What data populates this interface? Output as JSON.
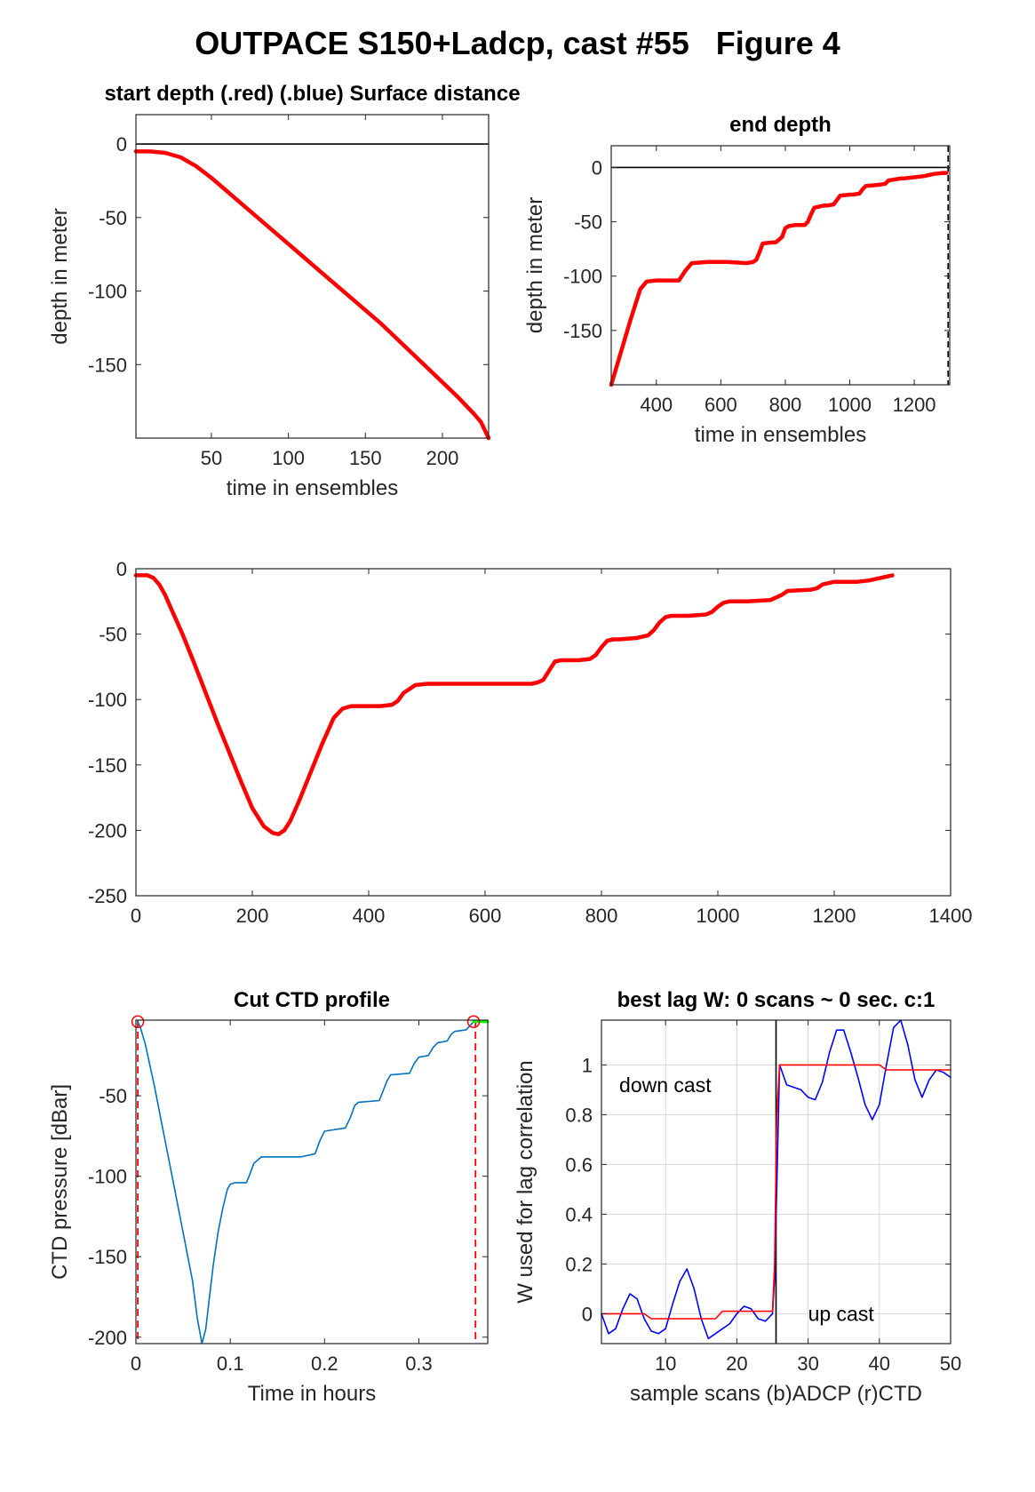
{
  "figure_title": "OUTPACE S150+Ladcp, cast #55   Figure 4",
  "chart_data": [
    {
      "id": "start-depth",
      "type": "line",
      "title": "start depth (.red) (.blue) Surface distance",
      "xlabel": "time in ensembles",
      "ylabel": "depth in meter",
      "xlim": [
        1,
        230
      ],
      "ylim": [
        -200,
        20
      ],
      "xticks": [
        50,
        100,
        150,
        200
      ],
      "yticks": [
        0,
        -50,
        -100,
        -150
      ],
      "grid": false,
      "reference_line": {
        "y": 0,
        "color": "#000000"
      },
      "series": [
        {
          "color": "#ff0000",
          "x": [
            1,
            10,
            20,
            30,
            40,
            50,
            60,
            70,
            80,
            90,
            100,
            110,
            120,
            130,
            140,
            150,
            160,
            170,
            180,
            190,
            200,
            210,
            220,
            225,
            230
          ],
          "y": [
            -5,
            -5,
            -6,
            -9,
            -15,
            -23,
            -32,
            -41,
            -50,
            -59,
            -68,
            -77,
            -86,
            -95,
            -104,
            -113,
            -122,
            -132,
            -142,
            -152,
            -162,
            -172,
            -183,
            -189,
            -200
          ]
        }
      ]
    },
    {
      "id": "end-depth",
      "type": "line",
      "title": "end depth",
      "xlabel": "time in ensembles",
      "ylabel": "depth in meter",
      "xlim": [
        260,
        1310
      ],
      "ylim": [
        -200,
        20
      ],
      "xticks": [
        400,
        600,
        800,
        1000,
        1200
      ],
      "yticks": [
        0,
        -50,
        -100,
        -150
      ],
      "grid": false,
      "reference_line": {
        "y": 0,
        "color": "#000000"
      },
      "vertical_marker": {
        "x": 1305,
        "style": "dashed",
        "color": "#000000"
      },
      "series": [
        {
          "color": "#ff0000",
          "x": [
            260,
            280,
            320,
            350,
            370,
            400,
            430,
            445,
            470,
            490,
            510,
            560,
            620,
            680,
            700,
            710,
            720,
            730,
            760,
            770,
            790,
            800,
            810,
            830,
            860,
            870,
            880,
            890,
            920,
            930,
            950,
            960,
            970,
            1000,
            1010,
            1030,
            1040,
            1050,
            1090,
            1110,
            1120,
            1160,
            1170,
            1200,
            1230,
            1260,
            1290,
            1300
          ],
          "y": [
            -200,
            -180,
            -140,
            -112,
            -105,
            -104,
            -104,
            -104,
            -104,
            -95,
            -88,
            -87,
            -87,
            -88,
            -87,
            -85,
            -78,
            -70,
            -69,
            -69,
            -64,
            -56,
            -54,
            -53,
            -53,
            -50,
            -43,
            -37,
            -35,
            -35,
            -34,
            -30,
            -26,
            -25,
            -25,
            -24,
            -20,
            -17,
            -16,
            -15,
            -12,
            -10,
            -10,
            -9,
            -8,
            -6,
            -5,
            -5
          ]
        }
      ]
    },
    {
      "id": "full-depth",
      "type": "line",
      "title": "",
      "xlabel": "",
      "ylabel": "",
      "xlim": [
        0,
        1400
      ],
      "ylim": [
        -250,
        0
      ],
      "xticks": [
        0,
        200,
        400,
        600,
        800,
        1000,
        1200,
        1400
      ],
      "yticks": [
        0,
        -50,
        -100,
        -150,
        -200,
        -250
      ],
      "grid": false,
      "series": [
        {
          "color": "#ff0000",
          "x": [
            0,
            20,
            30,
            40,
            50,
            60,
            80,
            100,
            120,
            140,
            160,
            180,
            200,
            220,
            235,
            245,
            255,
            265,
            280,
            300,
            320,
            340,
            355,
            370,
            390,
            420,
            440,
            450,
            460,
            480,
            500,
            560,
            620,
            680,
            690,
            700,
            710,
            720,
            730,
            760,
            780,
            790,
            800,
            810,
            820,
            830,
            860,
            880,
            890,
            900,
            910,
            920,
            930,
            950,
            980,
            990,
            1000,
            1010,
            1020,
            1030,
            1050,
            1090,
            1110,
            1120,
            1160,
            1170,
            1180,
            1200,
            1240,
            1260,
            1280,
            1300
          ],
          "y": [
            -5,
            -5,
            -7,
            -12,
            -20,
            -30,
            -50,
            -72,
            -95,
            -118,
            -140,
            -162,
            -183,
            -197,
            -202,
            -203,
            -200,
            -193,
            -178,
            -156,
            -134,
            -114,
            -107,
            -105,
            -105,
            -105,
            -104,
            -101,
            -95,
            -89,
            -88,
            -88,
            -88,
            -88,
            -87,
            -85,
            -78,
            -71,
            -70,
            -70,
            -69,
            -66,
            -60,
            -55,
            -54,
            -54,
            -53,
            -51,
            -47,
            -41,
            -37,
            -36,
            -36,
            -36,
            -35,
            -33,
            -29,
            -26,
            -25,
            -25,
            -25,
            -24,
            -20,
            -17,
            -16,
            -15,
            -12,
            -10,
            -10,
            -9,
            -7,
            -5
          ]
        }
      ]
    },
    {
      "id": "cut-ctd",
      "type": "line",
      "title": "Cut CTD profile",
      "xlabel": "Time in hours",
      "ylabel": "CTD pressure [dBar]",
      "xlim": [
        0,
        0.373
      ],
      "ylim": [
        -204,
        -3
      ],
      "xticks": [
        0,
        0.1,
        0.2,
        0.3
      ],
      "xticklabels": [
        "0",
        "0.1",
        "0.2",
        "0.3"
      ],
      "yticks": [
        -50,
        -100,
        -150,
        -200
      ],
      "grid": false,
      "cut_markers": {
        "x": [
          0.002,
          0.36
        ],
        "color": "#ff0000",
        "style": "dashed"
      },
      "circle_markers": [
        {
          "x": 0.002,
          "y": -4
        },
        {
          "x": 0.358,
          "y": -4
        }
      ],
      "series": [
        {
          "name": "",
          "color": "#0072bd",
          "x": [
            0.002,
            0.005,
            0.01,
            0.02,
            0.03,
            0.04,
            0.05,
            0.06,
            0.065,
            0.07,
            0.074,
            0.078,
            0.082,
            0.087,
            0.092,
            0.097,
            0.1,
            0.105,
            0.11,
            0.117,
            0.12,
            0.125,
            0.133,
            0.14,
            0.175,
            0.19,
            0.195,
            0.2,
            0.222,
            0.227,
            0.232,
            0.236,
            0.258,
            0.262,
            0.266,
            0.27,
            0.29,
            0.295,
            0.3,
            0.31,
            0.315,
            0.32,
            0.33,
            0.334,
            0.338,
            0.35,
            0.355,
            0.358
          ],
          "y": [
            -4,
            -8,
            -18,
            -45,
            -75,
            -105,
            -135,
            -165,
            -188,
            -204,
            -195,
            -175,
            -155,
            -135,
            -120,
            -108,
            -105,
            -104,
            -104,
            -104,
            -100,
            -92,
            -88,
            -88,
            -88,
            -86,
            -78,
            -72,
            -70,
            -64,
            -56,
            -54,
            -53,
            -47,
            -41,
            -37,
            -36,
            -30,
            -26,
            -25,
            -20,
            -17,
            -16,
            -12,
            -10,
            -9,
            -6,
            -4
          ]
        },
        {
          "name": "",
          "color": "#00ff00",
          "x": [
            0.358,
            0.373
          ],
          "y": [
            -4,
            -4
          ]
        }
      ]
    },
    {
      "id": "best-lag",
      "type": "line",
      "title": "best lag W: 0 scans ~ 0 sec.  c:1",
      "xlabel": "sample scans (b)ADCP (r)CTD",
      "ylabel": "W used for lag correlation",
      "xlim": [
        1,
        50
      ],
      "ylim": [
        -0.12,
        1.18
      ],
      "xticks": [
        10,
        20,
        30,
        40,
        50
      ],
      "yticks": [
        0,
        0.2,
        0.4,
        0.6,
        0.8,
        1
      ],
      "grid": true,
      "vertical_marker": {
        "x": 25.5,
        "color": "#000000"
      },
      "annotations": [
        {
          "text": "down cast",
          "x": 3.5,
          "y": 0.92
        },
        {
          "text": "up cast",
          "x": 30,
          "y": 0.0
        }
      ],
      "series": [
        {
          "name": "",
          "color": "#0000ff",
          "x": [
            1,
            2,
            3,
            4,
            5,
            6,
            7,
            8,
            9,
            10,
            11,
            12,
            13,
            14,
            15,
            16,
            17,
            18,
            19,
            20,
            21,
            22,
            23,
            24,
            25,
            25.3,
            25.6,
            26,
            27,
            28,
            29,
            30,
            31,
            32,
            33,
            34,
            35,
            36,
            37,
            38,
            39,
            40,
            41,
            42,
            43,
            44,
            45,
            46,
            47,
            48,
            49,
            50
          ],
          "y": [
            0,
            -0.08,
            -0.06,
            0.02,
            0.08,
            0.06,
            -0.02,
            -0.07,
            -0.08,
            -0.06,
            0.04,
            0.13,
            0.18,
            0.1,
            -0.02,
            -0.1,
            -0.08,
            -0.06,
            -0.04,
            0.0,
            0.03,
            0.02,
            -0.02,
            -0.03,
            0.0,
            0.14,
            0.5,
            1.0,
            0.92,
            0.91,
            0.9,
            0.87,
            0.86,
            0.93,
            1.05,
            1.14,
            1.14,
            1.05,
            0.95,
            0.84,
            0.78,
            0.84,
            1.0,
            1.15,
            1.18,
            1.08,
            0.94,
            0.87,
            0.94,
            0.98,
            0.97,
            0.95
          ]
        },
        {
          "name": "",
          "color": "#ff0000",
          "x": [
            1,
            7,
            8,
            17,
            18,
            25,
            25.3,
            25.6,
            26,
            40,
            41,
            50
          ],
          "y": [
            0,
            0,
            -0.02,
            -0.02,
            0.01,
            0.01,
            0.2,
            0.8,
            1.0,
            1.0,
            0.98,
            0.98
          ]
        }
      ]
    }
  ]
}
